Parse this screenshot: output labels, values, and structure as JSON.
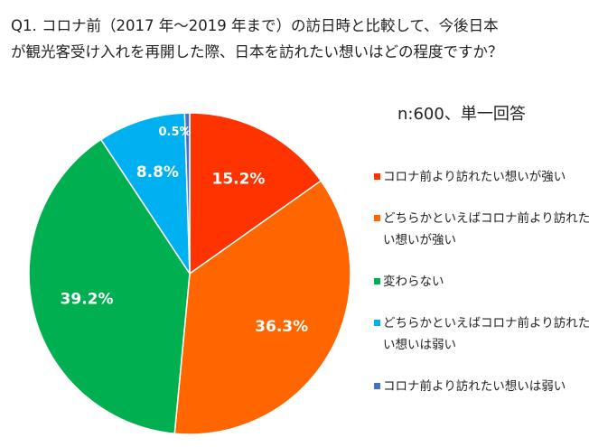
{
  "chart_data": {
    "type": "pie",
    "title": [
      "Q1. コロナ前（2017 年～2019 年まで）の訪日時と比較して、今後日本",
      "が観光客受け入れを再開した際、日本を訪れたい想いはどの程度ですか？"
    ],
    "subtitle": "n:600、単一回答",
    "series": [
      {
        "name": "コロナ前より訪れたい想いが強い",
        "color": "#ff3300",
        "values": [
          15.2
        ],
        "value_labels": [
          "15.2%"
        ]
      },
      {
        "name": "どちらかといえばコロナ前より訪れたい想いが強い",
        "color": "#ff6600",
        "values": [
          36.3
        ],
        "value_labels": [
          "36.3%"
        ]
      },
      {
        "name": "変わらない",
        "color": "#00b050",
        "values": [
          39.2
        ],
        "value_labels": [
          "39.2%"
        ]
      },
      {
        "name": "どちらかといえばコロナ前より訪れたい想いは弱い",
        "color": "#00b0f0",
        "values": [
          8.8
        ],
        "value_labels": [
          "8.8%"
        ]
      },
      {
        "name": "コロナ前より訪れたい想いは弱い",
        "color": "#4472c4",
        "values": [
          0.5
        ],
        "value_labels": [
          "0.5%"
        ]
      }
    ]
  }
}
